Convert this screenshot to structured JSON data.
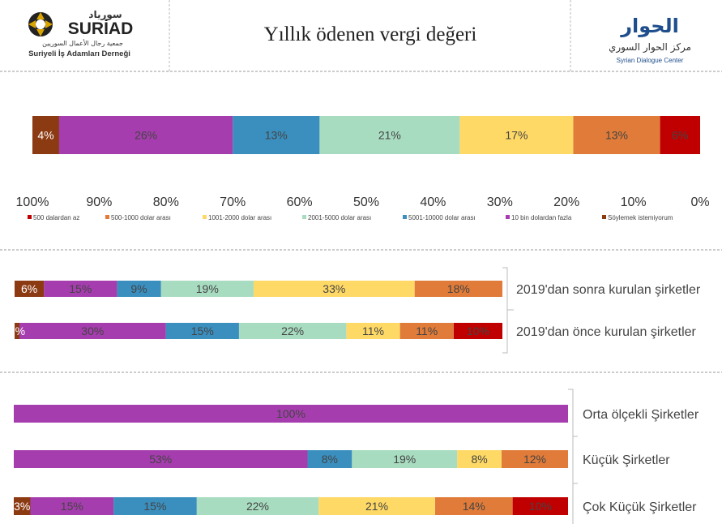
{
  "header": {
    "title": "Yıllık ödenen vergi değeri",
    "left_logo": {
      "name": "SURİAD",
      "arabic": "سورياد",
      "line1": "جمعية رجال الأعمال السوريين",
      "line2": "Suriyeli İş Adamları Derneği"
    },
    "right_logo": {
      "arabic_big": "الحوار",
      "arabic_small": "مركز الحوار السوري",
      "english": "Syrian Dialogue Center"
    }
  },
  "colors": {
    "500 dalardan az": "#c00000",
    "500-1000 dolar arası": "#e07b39",
    "1001-2000 dolar arası": "#ffd966",
    "2001-5000 dolar arası": "#a8dcc0",
    "5001-10000 dolar arası": "#3a8fbf",
    "10 bin dolardan fazla": "#a63dae",
    "Söylemek istemiyorum": "#8b3a12"
  },
  "chart_data": [
    {
      "type": "bar",
      "orientation": "horizontal-stacked",
      "x_direction": "reversed",
      "xlim": [
        0,
        100
      ],
      "x_ticks": [
        "100%",
        "90%",
        "80%",
        "70%",
        "60%",
        "50%",
        "40%",
        "30%",
        "20%",
        "10%",
        "0%"
      ],
      "legend": "bottom",
      "categories": [
        ""
      ],
      "series": [
        {
          "name": "500 dalardan az",
          "values": [
            6
          ]
        },
        {
          "name": "500-1000 dolar arası",
          "values": [
            13
          ]
        },
        {
          "name": "1001-2000 dolar arası",
          "values": [
            17
          ]
        },
        {
          "name": "2001-5000 dolar arası",
          "values": [
            21
          ]
        },
        {
          "name": "5001-10000 dolar arası",
          "values": [
            13
          ]
        },
        {
          "name": "10 bin dolardan fazla",
          "values": [
            26
          ]
        },
        {
          "name": "Söylemek istemiyorum",
          "values": [
            4
          ]
        }
      ]
    },
    {
      "type": "bar",
      "orientation": "horizontal-stacked",
      "x_direction": "reversed",
      "categories": [
        "2019'dan sonra kurulan şirketler",
        "2019'dan önce kurulan şirketler"
      ],
      "series": [
        {
          "name": "500 dalardan az",
          "values": [
            0,
            10
          ]
        },
        {
          "name": "500-1000 dolar arası",
          "values": [
            18,
            11
          ]
        },
        {
          "name": "1001-2000 dolar arası",
          "values": [
            33,
            11
          ]
        },
        {
          "name": "2001-5000 dolar arası",
          "values": [
            19,
            22
          ]
        },
        {
          "name": "5001-10000 dolar arası",
          "values": [
            9,
            15
          ]
        },
        {
          "name": "10 bin dolardan fazla",
          "values": [
            15,
            30
          ]
        },
        {
          "name": "Söylemek istemiyorum",
          "values": [
            6,
            1
          ]
        }
      ]
    },
    {
      "type": "bar",
      "orientation": "horizontal-stacked",
      "x_direction": "reversed",
      "categories": [
        "Orta ölçekli Şirketler",
        "Küçük Şirketler",
        "Çok Küçük Şirketler"
      ],
      "series": [
        {
          "name": "500 dalardan az",
          "values": [
            0,
            0,
            10
          ]
        },
        {
          "name": "500-1000 dolar arası",
          "values": [
            0,
            12,
            14
          ]
        },
        {
          "name": "1001-2000 dolar arası",
          "values": [
            0,
            8,
            21
          ]
        },
        {
          "name": "2001-5000 dolar arası",
          "values": [
            0,
            19,
            22
          ]
        },
        {
          "name": "5001-10000 dolar arası",
          "values": [
            0,
            8,
            15
          ]
        },
        {
          "name": "10 bin dolardan fazla",
          "values": [
            100,
            53,
            15
          ]
        },
        {
          "name": "Söylemek istemiyorum",
          "values": [
            0,
            0,
            3
          ]
        }
      ]
    }
  ]
}
